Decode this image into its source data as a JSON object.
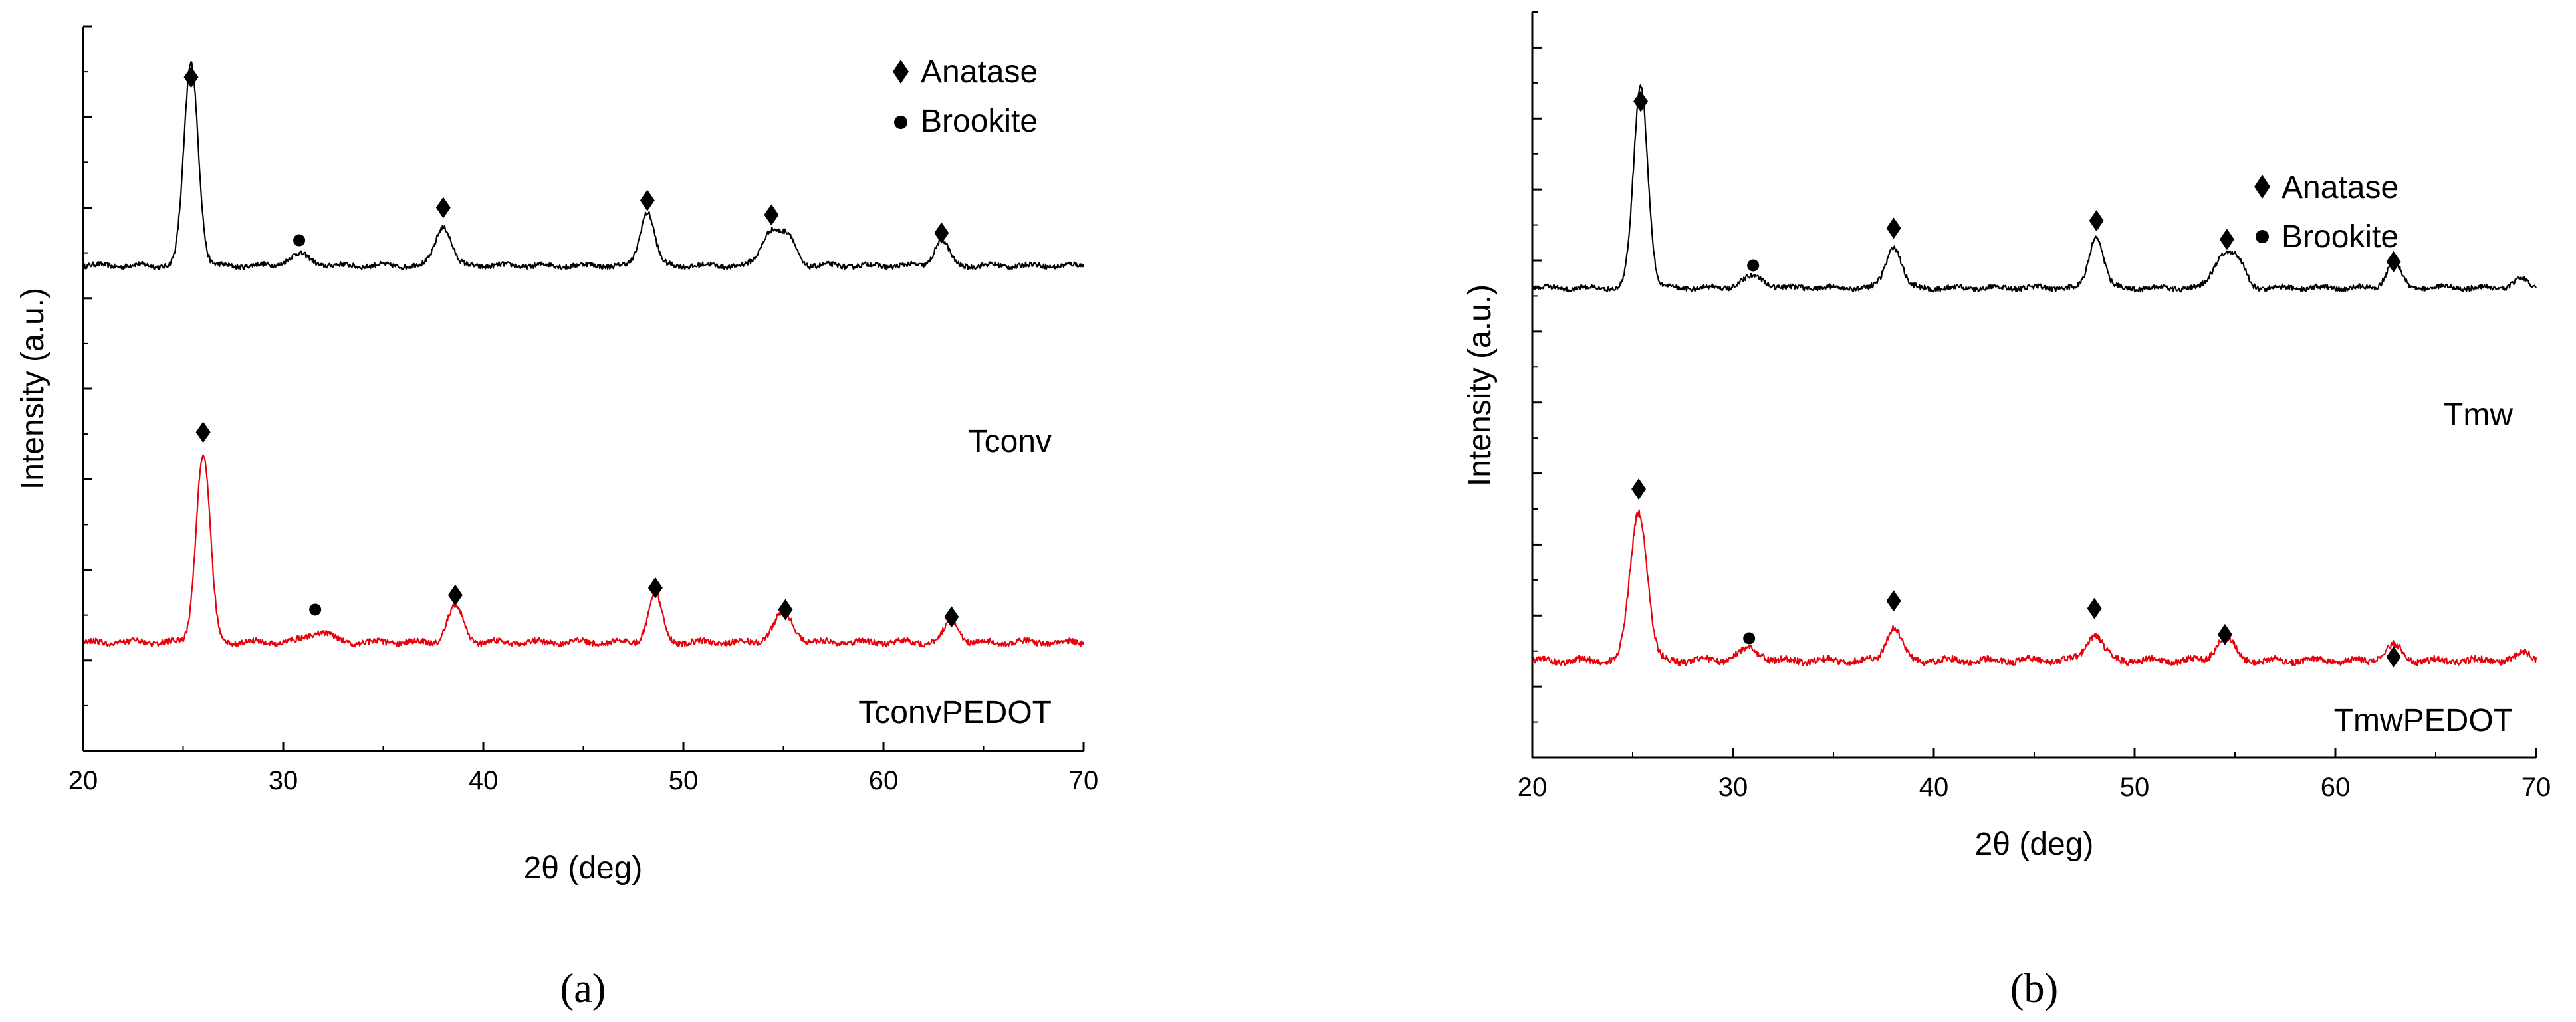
{
  "chart_data": [
    {
      "panel_label": "a",
      "type": "line",
      "xlabel": "2θ (deg)",
      "ylabel": "Intensity (a.u.)",
      "xlim": [
        20,
        70
      ],
      "ylim": [
        0,
        100
      ],
      "xticks": [
        20,
        30,
        40,
        50,
        60,
        70
      ],
      "legend": {
        "position": "top-right",
        "entries": [
          {
            "marker": "diamond",
            "label": "Anatase"
          },
          {
            "marker": "circle",
            "label": "Brookite"
          }
        ]
      },
      "series": [
        {
          "name": "Tconv",
          "color": "#000000",
          "baseline": 67,
          "noise": 0.35,
          "peaks": [
            {
              "x": 25.4,
              "h": 28,
              "w": 0.5
            },
            {
              "x": 30.8,
              "h": 1.5,
              "w": 0.8
            },
            {
              "x": 38.0,
              "h": 5.5,
              "w": 0.55
            },
            {
              "x": 48.2,
              "h": 7.5,
              "w": 0.5
            },
            {
              "x": 54.4,
              "h": 5,
              "w": 0.65
            },
            {
              "x": 55.3,
              "h": 3.5,
              "w": 0.5
            },
            {
              "x": 62.9,
              "h": 3.5,
              "w": 0.5
            }
          ],
          "markers": [
            {
              "type": "diamond",
              "x": 25.4,
              "y": 93
            },
            {
              "type": "circle",
              "x": 30.8,
              "y": 70.5
            },
            {
              "type": "diamond",
              "x": 38.0,
              "y": 75
            },
            {
              "type": "diamond",
              "x": 48.2,
              "y": 76
            },
            {
              "type": "diamond",
              "x": 54.4,
              "y": 74
            },
            {
              "type": "diamond",
              "x": 62.9,
              "y": 71.5
            }
          ]
        },
        {
          "name": "TconvPEDOT",
          "color": "#e8000b",
          "baseline": 15,
          "noise": 0.4,
          "peaks": [
            {
              "x": 26.0,
              "h": 26,
              "w": 0.5
            },
            {
              "x": 31.8,
              "h": 1.5,
              "w": 0.8
            },
            {
              "x": 38.6,
              "h": 5,
              "w": 0.55
            },
            {
              "x": 48.6,
              "h": 6.5,
              "w": 0.5
            },
            {
              "x": 55.0,
              "h": 4,
              "w": 0.7
            },
            {
              "x": 63.4,
              "h": 3,
              "w": 0.5
            }
          ],
          "markers": [
            {
              "type": "diamond",
              "x": 26.0,
              "y": 44
            },
            {
              "type": "circle",
              "x": 31.6,
              "y": 19.5
            },
            {
              "type": "diamond",
              "x": 38.6,
              "y": 21.5
            },
            {
              "type": "diamond",
              "x": 48.6,
              "y": 22.5
            },
            {
              "type": "diamond",
              "x": 55.1,
              "y": 19.5
            },
            {
              "type": "diamond",
              "x": 63.4,
              "y": 18.5
            }
          ]
        }
      ]
    },
    {
      "panel_label": "b",
      "type": "line",
      "xlabel": "2θ (deg)",
      "ylabel": "Intensity (a.u.)",
      "xlim": [
        20,
        70
      ],
      "ylim": [
        0,
        100
      ],
      "xticks": [
        20,
        30,
        40,
        50,
        60,
        70
      ],
      "legend": {
        "position": "top-right",
        "entries": [
          {
            "marker": "diamond",
            "label": "Anatase"
          },
          {
            "marker": "circle",
            "label": "Brookite"
          }
        ]
      },
      "series": [
        {
          "name": "Tmw",
          "color": "#000000",
          "baseline": 63,
          "noise": 0.35,
          "peaks": [
            {
              "x": 25.4,
              "h": 27,
              "w": 0.5
            },
            {
              "x": 31.0,
              "h": 1.5,
              "w": 0.8
            },
            {
              "x": 38.0,
              "h": 5.5,
              "w": 0.55
            },
            {
              "x": 48.1,
              "h": 7,
              "w": 0.5
            },
            {
              "x": 54.4,
              "h": 4.5,
              "w": 0.65
            },
            {
              "x": 55.2,
              "h": 3,
              "w": 0.5
            },
            {
              "x": 62.9,
              "h": 3.5,
              "w": 0.5
            },
            {
              "x": 69.2,
              "h": 1.2,
              "w": 0.5
            }
          ],
          "markers": [
            {
              "type": "diamond",
              "x": 25.4,
              "y": 88
            },
            {
              "type": "circle",
              "x": 31.0,
              "y": 66
            },
            {
              "type": "diamond",
              "x": 38.0,
              "y": 71
            },
            {
              "type": "diamond",
              "x": 48.1,
              "y": 72
            },
            {
              "type": "diamond",
              "x": 54.6,
              "y": 69.5
            },
            {
              "type": "diamond",
              "x": 62.9,
              "y": 66.5
            }
          ]
        },
        {
          "name": "TmwPEDOT",
          "color": "#e8000b",
          "baseline": 13,
          "noise": 0.45,
          "peaks": [
            {
              "x": 25.3,
              "h": 20,
              "w": 0.6
            },
            {
              "x": 30.8,
              "h": 1.5,
              "w": 0.8
            },
            {
              "x": 38.0,
              "h": 4.5,
              "w": 0.55
            },
            {
              "x": 48.0,
              "h": 3.5,
              "w": 0.6
            },
            {
              "x": 54.5,
              "h": 3,
              "w": 0.65
            },
            {
              "x": 62.9,
              "h": 2,
              "w": 0.6
            },
            {
              "x": 69.5,
              "h": 1,
              "w": 0.5
            }
          ],
          "markers": [
            {
              "type": "diamond",
              "x": 25.3,
              "y": 36
            },
            {
              "type": "circle",
              "x": 30.8,
              "y": 16
            },
            {
              "type": "diamond",
              "x": 38.0,
              "y": 21
            },
            {
              "type": "diamond",
              "x": 48.0,
              "y": 20
            },
            {
              "type": "diamond",
              "x": 54.5,
              "y": 16.5
            },
            {
              "type": "diamond",
              "x": 62.9,
              "y": 13.5
            }
          ]
        }
      ]
    }
  ],
  "captions": {
    "a": "(a)",
    "b": "(b)"
  }
}
